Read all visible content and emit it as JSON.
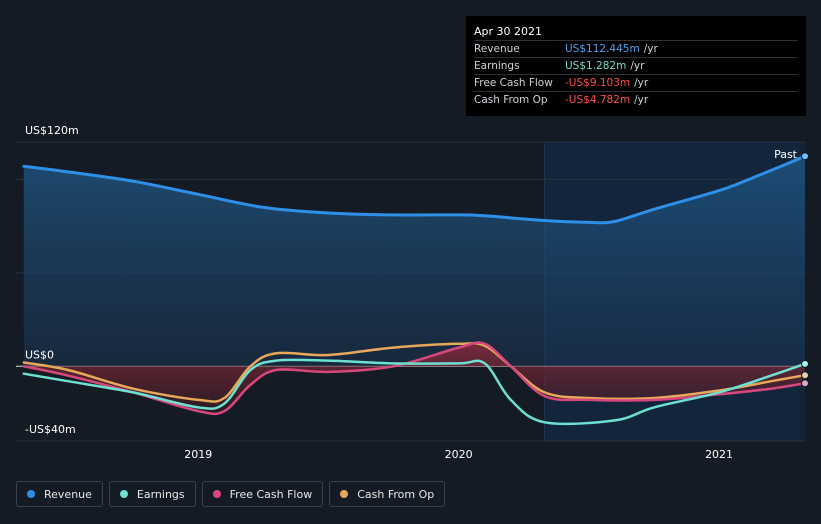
{
  "tooltip": {
    "date": "Apr 30 2021",
    "rows": [
      {
        "label": "Revenue",
        "value": "US$112.445m",
        "unit": "/yr",
        "color": "#4aa3f0"
      },
      {
        "label": "Earnings",
        "value": "US$1.282m",
        "unit": "/yr",
        "color": "#6de0d2"
      },
      {
        "label": "Free Cash Flow",
        "value": "-US$9.103m",
        "unit": "/yr",
        "color": "#ff4d4d"
      },
      {
        "label": "Cash From Op",
        "value": "-US$4.782m",
        "unit": "/yr",
        "color": "#ff4d4d"
      }
    ]
  },
  "legend": [
    {
      "label": "Revenue",
      "color": "#2e8fe8"
    },
    {
      "label": "Earnings",
      "color": "#6de0d2"
    },
    {
      "label": "Free Cash Flow",
      "color": "#d6487d"
    },
    {
      "label": "Cash From Op",
      "color": "#e7a85a"
    }
  ],
  "past_label": "Past",
  "chart_data": {
    "type": "line",
    "title": "",
    "y_axis_labels": [
      "US$120m",
      "US$0",
      "-US$40m"
    ],
    "ylim": [
      -40,
      120
    ],
    "xlim": [
      2018.3,
      2021.33
    ],
    "x_ticks": [
      2019,
      2020,
      2021
    ],
    "x_tick_labels": [
      "2019",
      "2020",
      "2021"
    ],
    "past_start": 2020.33,
    "colors": {
      "Revenue": "#2e8fe8",
      "Earnings": "#6de0d2",
      "Free Cash Flow": "#d6487d",
      "Cash From Op": "#e7a85a"
    },
    "series": [
      {
        "name": "Revenue",
        "x": [
          2018.33,
          2018.5,
          2018.75,
          2019.0,
          2019.25,
          2019.5,
          2019.75,
          2020.0,
          2020.1,
          2020.33,
          2020.5,
          2020.6,
          2020.75,
          2021.0,
          2021.15,
          2021.33
        ],
        "values": [
          107,
          104,
          99,
          92,
          85,
          82,
          81,
          81,
          80.5,
          78,
          77,
          77.5,
          84,
          94,
          102,
          112.4
        ]
      },
      {
        "name": "Earnings",
        "x": [
          2018.33,
          2018.5,
          2018.75,
          2019.0,
          2019.1,
          2019.2,
          2019.3,
          2019.5,
          2019.75,
          2020.0,
          2020.1,
          2020.2,
          2020.33,
          2020.6,
          2020.75,
          2021.0,
          2021.2,
          2021.33
        ],
        "values": [
          -4,
          -8,
          -14,
          -22,
          -20,
          -2,
          3,
          3,
          1.5,
          1.5,
          1.5,
          -18,
          -30,
          -29,
          -22,
          -14,
          -5,
          1.3
        ]
      },
      {
        "name": "Free Cash Flow",
        "x": [
          2018.33,
          2018.5,
          2018.75,
          2019.0,
          2019.1,
          2019.2,
          2019.3,
          2019.5,
          2019.75,
          2020.0,
          2020.1,
          2020.2,
          2020.33,
          2020.5,
          2020.75,
          2021.0,
          2021.2,
          2021.33
        ],
        "values": [
          0,
          -5,
          -14,
          -24,
          -24,
          -10,
          -2,
          -3,
          0,
          10,
          12,
          0,
          -16,
          -18,
          -18,
          -15,
          -12,
          -9.1
        ]
      },
      {
        "name": "Cash From Op",
        "x": [
          2018.33,
          2018.5,
          2018.75,
          2019.0,
          2019.1,
          2019.2,
          2019.3,
          2019.5,
          2019.75,
          2020.0,
          2020.1,
          2020.2,
          2020.33,
          2020.5,
          2020.75,
          2021.0,
          2021.2,
          2021.33
        ],
        "values": [
          2,
          -2,
          -12,
          -18,
          -17,
          0,
          7,
          6,
          10,
          12,
          11,
          0,
          -14,
          -17,
          -17,
          -13,
          -8,
          -4.8
        ]
      }
    ]
  }
}
